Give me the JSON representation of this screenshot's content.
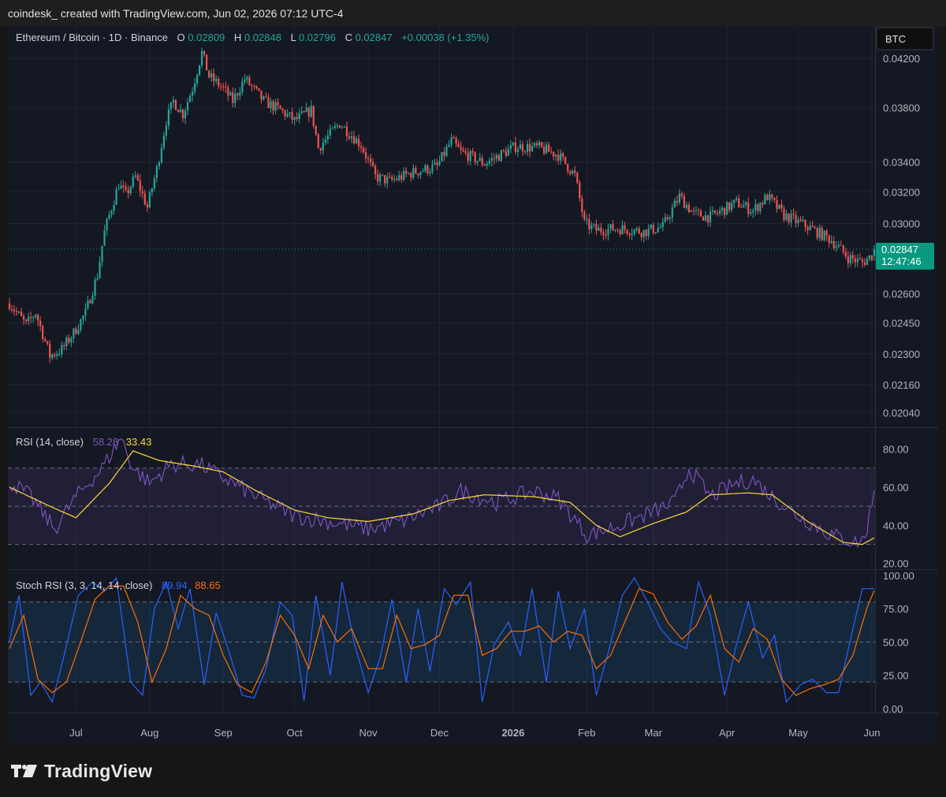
{
  "header": {
    "attribution": "coindesk_ created with TradingView.com, Jun 02, 2026 07:12 UTC-4"
  },
  "footer": {
    "brand": "TradingView"
  },
  "colors": {
    "up": "#26a69a",
    "down": "#ef5350",
    "rsi": "#7e57c2",
    "rsi_ma": "#fdd835",
    "stoch_k": "#2962ff",
    "stoch_d": "#ff6d00",
    "last_price_badge": "#089981"
  },
  "chart_data": [
    {
      "type": "candlestick",
      "title": "Ethereum / Bitcoin · 1D · Binance",
      "ohlc_labels": {
        "o": "O",
        "h": "H",
        "l": "L",
        "c": "C"
      },
      "ohlc_values": {
        "o": "0.02809",
        "h": "0.02848",
        "l": "0.02796",
        "c": "0.02847"
      },
      "change": "+0.00038 (+1.35%)",
      "currency_button": "BTC",
      "y_scale": "log",
      "y_ticks": [
        "0.04200",
        "0.03800",
        "0.03400",
        "0.03200",
        "0.03000",
        "0.02600",
        "0.02450",
        "0.02300",
        "0.02160",
        "0.02040"
      ],
      "y_tick_values": [
        0.042,
        0.038,
        0.034,
        0.032,
        0.03,
        0.026,
        0.0245,
        0.023,
        0.0216,
        0.0204
      ],
      "ylim": [
        0.0198,
        0.0448
      ],
      "last_price": {
        "value": "0.02847",
        "countdown": "12:47:46"
      },
      "x_ticks": [
        "Jul",
        "Aug",
        "Sep",
        "Oct",
        "Nov",
        "Dec",
        "2026",
        "Feb",
        "Mar",
        "Apr",
        "May",
        "Jun"
      ],
      "x_tick_dates": [
        "2025-07-01",
        "2025-08-01",
        "2025-09-01",
        "2025-10-01",
        "2025-11-01",
        "2025-12-01",
        "2026-01-01",
        "2026-02-01",
        "2026-03-01",
        "2026-04-01",
        "2026-05-01",
        "2026-06-01"
      ],
      "close_path": {
        "dates": [
          "2025-06-03",
          "2025-06-10",
          "2025-06-14",
          "2025-06-20",
          "2025-06-25",
          "2025-06-30",
          "2025-07-05",
          "2025-07-10",
          "2025-07-13",
          "2025-07-16",
          "2025-07-19",
          "2025-07-22",
          "2025-07-26",
          "2025-07-31",
          "2025-08-04",
          "2025-08-08",
          "2025-08-11",
          "2025-08-15",
          "2025-08-19",
          "2025-08-23",
          "2025-08-26",
          "2025-09-01",
          "2025-09-05",
          "2025-09-10",
          "2025-09-18",
          "2025-09-25",
          "2025-10-01",
          "2025-10-08",
          "2025-10-11",
          "2025-10-20",
          "2025-10-29",
          "2025-11-04",
          "2025-11-10",
          "2025-11-20",
          "2025-11-30",
          "2025-12-06",
          "2025-12-10",
          "2025-12-20",
          "2026-01-02",
          "2026-01-12",
          "2026-01-20",
          "2026-01-27",
          "2026-01-31",
          "2026-02-05",
          "2026-02-15",
          "2026-02-25",
          "2026-03-05",
          "2026-03-12",
          "2026-03-18",
          "2026-03-25",
          "2026-04-05",
          "2026-04-12",
          "2026-04-18",
          "2026-04-25",
          "2026-05-05",
          "2026-05-15",
          "2026-05-22",
          "2026-05-28",
          "2026-06-01",
          "2026-06-02"
        ],
        "close": [
          0.0255,
          0.0244,
          0.025,
          0.0229,
          0.0232,
          0.024,
          0.025,
          0.027,
          0.0295,
          0.031,
          0.0325,
          0.0318,
          0.033,
          0.031,
          0.0335,
          0.037,
          0.0385,
          0.0375,
          0.0395,
          0.0425,
          0.0405,
          0.0395,
          0.0385,
          0.0403,
          0.0385,
          0.0378,
          0.037,
          0.0378,
          0.035,
          0.0368,
          0.0352,
          0.033,
          0.0327,
          0.0333,
          0.0337,
          0.0355,
          0.0347,
          0.0339,
          0.0351,
          0.035,
          0.0345,
          0.0331,
          0.03,
          0.0296,
          0.0297,
          0.0295,
          0.0298,
          0.0317,
          0.0306,
          0.0304,
          0.0313,
          0.0308,
          0.0317,
          0.0305,
          0.0298,
          0.029,
          0.028,
          0.0277,
          0.0281,
          0.02847
        ]
      }
    },
    {
      "type": "line",
      "title": "RSI (14, close)",
      "legend_values": [
        "58.28",
        "33.43"
      ],
      "y_ticks": [
        "80.00",
        "60.00",
        "40.00",
        "20.00"
      ],
      "y_tick_values": [
        80,
        60,
        40,
        20
      ],
      "ylim": [
        17,
        91
      ],
      "bands": {
        "upper": 70,
        "middle": 50,
        "lower": 30
      },
      "series": [
        {
          "dates": [
            "2025-06-03",
            "2025-06-12",
            "2025-06-22",
            "2025-07-01",
            "2025-07-12",
            "2025-07-20",
            "2025-07-25",
            "2025-08-01",
            "2025-08-10",
            "2025-08-22",
            "2025-09-01",
            "2025-09-15",
            "2025-10-01",
            "2025-10-15",
            "2025-11-01",
            "2025-11-15",
            "2025-12-01",
            "2025-12-10",
            "2025-12-25",
            "2026-01-10",
            "2026-01-20",
            "2026-02-01",
            "2026-02-10",
            "2026-02-25",
            "2026-03-10",
            "2026-03-16",
            "2026-03-25",
            "2026-04-05",
            "2026-04-12",
            "2026-04-20",
            "2026-05-01",
            "2026-05-15",
            "2026-05-25",
            "2026-05-29",
            "2026-06-02"
          ],
          "values": [
            63,
            55,
            38,
            55,
            70,
            86,
            70,
            62,
            72,
            72,
            65,
            55,
            45,
            42,
            38,
            42,
            50,
            58,
            52,
            58,
            54,
            35,
            38,
            45,
            52,
            70,
            55,
            62,
            64,
            55,
            45,
            35,
            31,
            33,
            58.28
          ]
        },
        {
          "dates": [
            "2025-06-03",
            "2025-06-20",
            "2025-07-01",
            "2025-07-15",
            "2025-07-25",
            "2025-08-05",
            "2025-08-20",
            "2025-09-01",
            "2025-09-15",
            "2025-10-01",
            "2025-10-15",
            "2025-11-01",
            "2025-11-20",
            "2025-12-05",
            "2025-12-20",
            "2026-01-10",
            "2026-01-25",
            "2026-02-05",
            "2026-02-15",
            "2026-03-01",
            "2026-03-15",
            "2026-03-25",
            "2026-04-10",
            "2026-04-20",
            "2026-05-05",
            "2026-05-20",
            "2026-05-28",
            "2026-06-02"
          ],
          "values": [
            60,
            50,
            44,
            62,
            79,
            74,
            71,
            68,
            58,
            48,
            44,
            42,
            46,
            53,
            56,
            55,
            52,
            40,
            34,
            41,
            47,
            56,
            57,
            56,
            42,
            31,
            30,
            33.43
          ]
        }
      ]
    },
    {
      "type": "line",
      "title": "Stoch RSI (3, 3, 14, 14, close)",
      "legend_values": [
        "89.94",
        "88.65"
      ],
      "y_ticks": [
        "100.00",
        "75.00",
        "50.00",
        "25.00",
        "0.00"
      ],
      "y_tick_values": [
        100,
        75,
        50,
        25,
        0
      ],
      "ylim": [
        -3,
        104
      ],
      "bands": {
        "upper": 80,
        "middle": 50,
        "lower": 20
      },
      "series": [
        {
          "dates": [
            "2025-06-03",
            "2025-06-07",
            "2025-06-12",
            "2025-06-16",
            "2025-06-21",
            "2025-06-26",
            "2025-07-02",
            "2025-07-08",
            "2025-07-13",
            "2025-07-18",
            "2025-07-24",
            "2025-07-29",
            "2025-08-03",
            "2025-08-08",
            "2025-08-13",
            "2025-08-18",
            "2025-08-24",
            "2025-08-29",
            "2025-09-03",
            "2025-09-09",
            "2025-09-14",
            "2025-09-19",
            "2025-09-25",
            "2025-09-30",
            "2025-10-05",
            "2025-10-10",
            "2025-10-16",
            "2025-10-21",
            "2025-10-26",
            "2025-11-01",
            "2025-11-06",
            "2025-11-11",
            "2025-11-17",
            "2025-11-22",
            "2025-11-27",
            "2025-12-03",
            "2025-12-08",
            "2025-12-14",
            "2025-12-19",
            "2025-12-24",
            "2025-12-30",
            "2026-01-04",
            "2026-01-09",
            "2026-01-15",
            "2026-01-20",
            "2026-01-25",
            "2026-01-31",
            "2026-02-05",
            "2026-02-10",
            "2026-02-16",
            "2026-02-21",
            "2026-02-26",
            "2026-03-04",
            "2026-03-09",
            "2026-03-15",
            "2026-03-20",
            "2026-03-25",
            "2026-03-31",
            "2026-04-05",
            "2026-04-10",
            "2026-04-16",
            "2026-04-21",
            "2026-04-26",
            "2026-05-02",
            "2026-05-07",
            "2026-05-13",
            "2026-05-18",
            "2026-05-23",
            "2026-05-28",
            "2026-06-02"
          ],
          "values": [
            50,
            85,
            10,
            20,
            5,
            40,
            85,
            95,
            88,
            98,
            20,
            10,
            75,
            95,
            60,
            90,
            18,
            72,
            45,
            10,
            8,
            30,
            80,
            70,
            6,
            85,
            25,
            95,
            50,
            12,
            38,
            82,
            20,
            75,
            28,
            90,
            78,
            95,
            5,
            48,
            65,
            40,
            90,
            20,
            88,
            45,
            75,
            10,
            42,
            85,
            98,
            82,
            60,
            50,
            45,
            95,
            70,
            10,
            48,
            80,
            38,
            55,
            5,
            18,
            22,
            12,
            12,
            52,
            90,
            89.94
          ]
        },
        {
          "dates": [
            "2025-06-03",
            "2025-06-09",
            "2025-06-15",
            "2025-06-21",
            "2025-06-27",
            "2025-07-03",
            "2025-07-09",
            "2025-07-15",
            "2025-07-21",
            "2025-07-27",
            "2025-08-02",
            "2025-08-08",
            "2025-08-14",
            "2025-08-20",
            "2025-08-26",
            "2025-09-01",
            "2025-09-07",
            "2025-09-13",
            "2025-09-19",
            "2025-09-25",
            "2025-10-01",
            "2025-10-07",
            "2025-10-13",
            "2025-10-19",
            "2025-10-25",
            "2025-11-01",
            "2025-11-07",
            "2025-11-13",
            "2025-11-19",
            "2025-11-25",
            "2025-12-01",
            "2025-12-07",
            "2025-12-13",
            "2025-12-19",
            "2025-12-25",
            "2025-12-31",
            "2026-01-06",
            "2026-01-12",
            "2026-01-18",
            "2026-01-24",
            "2026-01-30",
            "2026-02-05",
            "2026-02-11",
            "2026-02-17",
            "2026-02-23",
            "2026-03-01",
            "2026-03-07",
            "2026-03-13",
            "2026-03-19",
            "2026-03-25",
            "2026-03-31",
            "2026-04-06",
            "2026-04-12",
            "2026-04-18",
            "2026-04-24",
            "2026-04-30",
            "2026-05-06",
            "2026-05-12",
            "2026-05-18",
            "2026-05-24",
            "2026-05-30",
            "2026-06-02"
          ],
          "values": [
            45,
            70,
            22,
            12,
            20,
            50,
            82,
            92,
            92,
            65,
            20,
            45,
            85,
            75,
            70,
            40,
            18,
            12,
            35,
            70,
            55,
            30,
            70,
            50,
            60,
            30,
            30,
            70,
            45,
            48,
            55,
            85,
            85,
            40,
            45,
            58,
            58,
            62,
            50,
            58,
            55,
            30,
            40,
            65,
            90,
            86,
            65,
            52,
            62,
            85,
            45,
            35,
            60,
            52,
            22,
            10,
            15,
            18,
            22,
            40,
            76,
            88.65
          ]
        }
      ]
    }
  ]
}
